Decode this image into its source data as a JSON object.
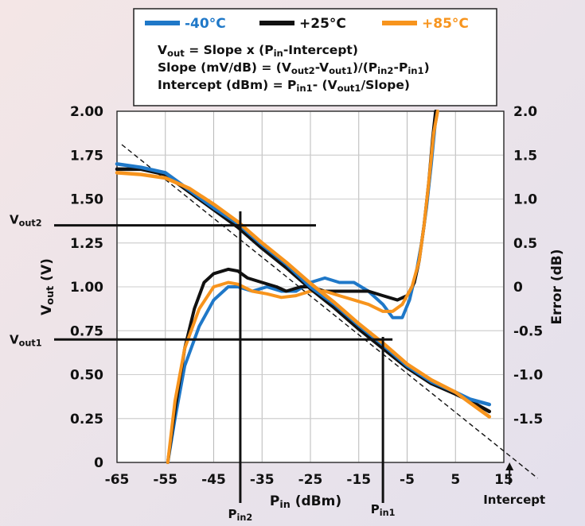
{
  "chart_data": {
    "type": "line",
    "xlabel": "Pin (dBm)",
    "ylabel": "Vout (V)",
    "y2label": "Error (dB)",
    "xlim": [
      -65,
      15
    ],
    "ylim": [
      0,
      2.0
    ],
    "y2lim": [
      -2.0,
      2.0
    ],
    "x_ticks": [
      "-65",
      "-55",
      "-45",
      "-35",
      "-25",
      "-15",
      "-5",
      "5",
      "15"
    ],
    "y_ticks": [
      "0",
      "0.25",
      "0.50",
      "0.75",
      "1.00",
      "1.25",
      "1.50",
      "1.75",
      "2.00"
    ],
    "y2_ticks": [
      "-1.5",
      "-1.0",
      "-0.5",
      "0",
      "0.5",
      "1.0",
      "1.5",
      "2.0"
    ],
    "grid": true,
    "legend_position": "top",
    "legend": [
      {
        "label": "-40°C",
        "color": "#1f78c8"
      },
      {
        "label": "+25°C",
        "color": "#111111"
      },
      {
        "label": "+85°C",
        "color": "#f7941d"
      }
    ],
    "formulas": [
      "Vout = Slope x (Pin-Intercept)",
      "Slope (mV/dB) = (Vout2-Vout1)/(Pin2-Pin1)",
      "Intercept (dBm) = Pin1- (Vout1/Slope)"
    ],
    "annotations": {
      "vout2": {
        "label": "Vout2",
        "y": 1.35
      },
      "vout1": {
        "label": "Vout1",
        "y": 0.7
      },
      "pin2": {
        "label": "Pin2",
        "x": -39.5
      },
      "pin1": {
        "label": "Pin1",
        "x": -10
      },
      "intercept": {
        "label": "Intercept",
        "x": 17.5
      }
    },
    "ideal_line": {
      "x": [
        -65,
        22
      ],
      "y": [
        1.81,
        -0.09
      ]
    },
    "series": [
      {
        "name": "-40°C",
        "kind": "vout",
        "color": "#1f78c8",
        "x": [
          -65,
          -60,
          -55,
          -50,
          -45,
          -40,
          -35,
          -30,
          -25,
          -20,
          -15,
          -10,
          -5,
          0,
          5,
          8,
          12
        ],
        "y": [
          1.7,
          1.68,
          1.65,
          1.55,
          1.45,
          1.36,
          1.24,
          1.13,
          1.0,
          0.9,
          0.78,
          0.67,
          0.55,
          0.46,
          0.4,
          0.36,
          0.33
        ]
      },
      {
        "name": "+25°C",
        "kind": "vout",
        "color": "#111111",
        "x": [
          -65,
          -60,
          -55,
          -50,
          -45,
          -40,
          -35,
          -30,
          -25,
          -20,
          -15,
          -10,
          -5,
          0,
          5,
          8,
          12
        ],
        "y": [
          1.67,
          1.67,
          1.64,
          1.54,
          1.44,
          1.34,
          1.22,
          1.11,
          0.99,
          0.88,
          0.76,
          0.65,
          0.54,
          0.45,
          0.39,
          0.35,
          0.29
        ]
      },
      {
        "name": "+85°C",
        "kind": "vout",
        "color": "#f7941d",
        "x": [
          -65,
          -60,
          -55,
          -50,
          -45,
          -40,
          -35,
          -30,
          -25,
          -20,
          -15,
          -10,
          -5,
          0,
          5,
          8,
          12
        ],
        "y": [
          1.65,
          1.64,
          1.62,
          1.56,
          1.47,
          1.37,
          1.25,
          1.14,
          1.02,
          0.91,
          0.79,
          0.68,
          0.56,
          0.47,
          0.4,
          0.34,
          0.26
        ]
      },
      {
        "name": "-40°C",
        "kind": "error",
        "color": "#1f78c8",
        "x": [
          -54.5,
          -53,
          -51,
          -48,
          -45,
          -42,
          -40,
          -37,
          -34,
          -31,
          -28,
          -25,
          -22,
          -19,
          -16,
          -13,
          -10,
          -8,
          -6,
          -4.5,
          -3,
          -2,
          -1,
          0,
          0.8,
          1.3
        ],
        "y": [
          -2.0,
          -1.5,
          -0.9,
          -0.45,
          -0.15,
          0.0,
          0.0,
          -0.05,
          0.0,
          -0.05,
          -0.05,
          0.05,
          0.1,
          0.05,
          0.05,
          -0.05,
          -0.2,
          -0.35,
          -0.35,
          -0.15,
          0.2,
          0.5,
          0.9,
          1.4,
          1.85,
          2.0
        ]
      },
      {
        "name": "+25°C",
        "kind": "error",
        "color": "#111111",
        "x": [
          -54.5,
          -53,
          -51,
          -49,
          -47,
          -45,
          -42,
          -40,
          -38,
          -35,
          -32,
          -30,
          -27,
          -25,
          -22,
          -19,
          -16,
          -13,
          -10,
          -7,
          -5,
          -3.5,
          -2.5,
          -1.5,
          -0.5,
          0.3,
          0.9
        ],
        "y": [
          -2.0,
          -1.4,
          -0.7,
          -0.25,
          0.05,
          0.15,
          0.2,
          0.18,
          0.1,
          0.05,
          0.0,
          -0.05,
          0.0,
          0.0,
          -0.05,
          -0.05,
          -0.05,
          -0.05,
          -0.1,
          -0.15,
          -0.1,
          0.05,
          0.3,
          0.7,
          1.2,
          1.7,
          2.0
        ]
      },
      {
        "name": "+85°C",
        "kind": "error",
        "color": "#f7941d",
        "x": [
          -54.5,
          -53,
          -51,
          -48,
          -45,
          -42,
          -40,
          -37,
          -34,
          -31,
          -28,
          -25,
          -22,
          -19,
          -16,
          -13,
          -10,
          -8,
          -6,
          -4,
          -2.5,
          -1.5,
          -0.5,
          0.5,
          1.3
        ],
        "y": [
          -2.0,
          -1.3,
          -0.7,
          -0.25,
          0.0,
          0.05,
          0.03,
          -0.05,
          -0.08,
          -0.12,
          -0.1,
          -0.05,
          -0.05,
          -0.1,
          -0.15,
          -0.2,
          -0.28,
          -0.28,
          -0.2,
          0.0,
          0.3,
          0.7,
          1.2,
          1.75,
          2.0
        ]
      }
    ]
  }
}
